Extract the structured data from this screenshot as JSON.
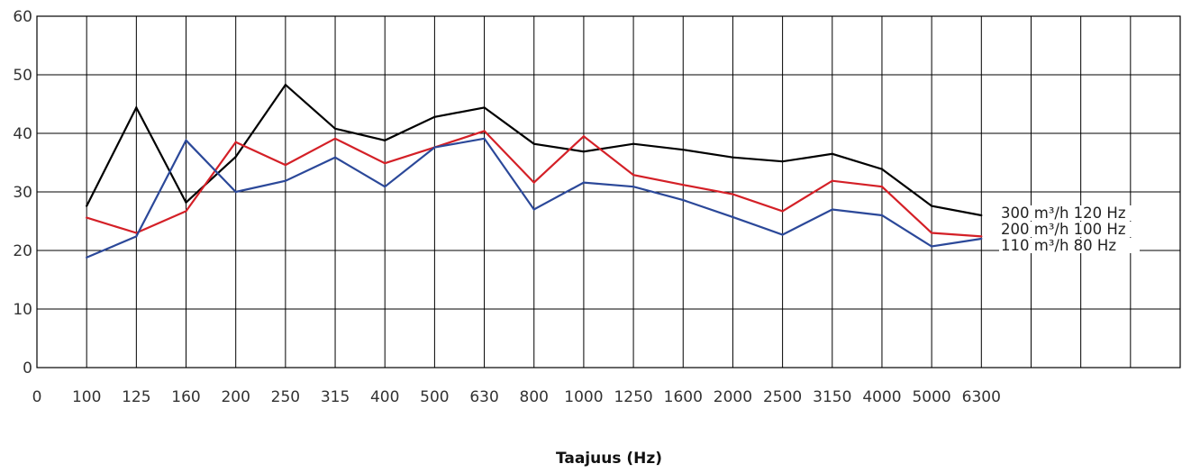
{
  "chart_data": {
    "type": "line",
    "title": "",
    "xlabel": "Taajuus (Hz)",
    "ylabel": "",
    "ylim": [
      0,
      60
    ],
    "yticks": [
      "0",
      "10",
      "20",
      "30",
      "40",
      "50",
      "60"
    ],
    "x_origin_label": "0",
    "categories": [
      "100",
      "125",
      "160",
      "200",
      "250",
      "315",
      "400",
      "500",
      "630",
      "800",
      "1000",
      "1250",
      "1600",
      "2000",
      "2500",
      "3150",
      "4000",
      "5000",
      "6300"
    ],
    "grid": true,
    "legend_position": "right-inline",
    "series": [
      {
        "name": "300 m³/h 120 Hz",
        "color": "#000000",
        "values": [
          27.6,
          44.4,
          28.2,
          36.0,
          48.3,
          40.8,
          38.8,
          42.8,
          44.4,
          38.2,
          36.9,
          38.2,
          37.2,
          35.9,
          35.2,
          36.5,
          33.9,
          27.6,
          26.0
        ]
      },
      {
        "name": "200 m³/h 100 Hz",
        "color": "#d42027",
        "values": [
          25.6,
          23.0,
          26.7,
          38.5,
          34.6,
          39.1,
          34.9,
          37.6,
          40.4,
          31.6,
          39.5,
          32.9,
          31.2,
          29.6,
          26.7,
          31.9,
          30.9,
          23.0,
          22.4
        ]
      },
      {
        "name": "110 m³/h 80 Hz",
        "color": "#2b4899",
        "values": [
          18.8,
          22.4,
          38.8,
          30.0,
          31.9,
          35.9,
          30.9,
          37.6,
          39.1,
          27.0,
          31.6,
          30.9,
          28.6,
          25.7,
          22.7,
          27.0,
          26.0,
          20.7,
          22.0
        ]
      }
    ]
  }
}
